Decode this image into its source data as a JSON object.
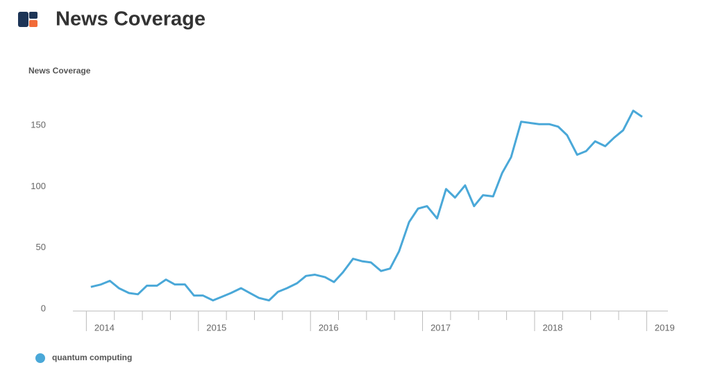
{
  "chart_data": {
    "type": "line",
    "title": "News Coverage",
    "ylabel": "News Coverage",
    "x": [
      2014.04,
      2014.13,
      2014.21,
      2014.29,
      2014.38,
      2014.46,
      2014.54,
      2014.63,
      2014.71,
      2014.79,
      2014.88,
      2014.96,
      2015.04,
      2015.13,
      2015.21,
      2015.29,
      2015.38,
      2015.46,
      2015.54,
      2015.63,
      2015.71,
      2015.79,
      2015.88,
      2015.96,
      2016.04,
      2016.13,
      2016.21,
      2016.29,
      2016.38,
      2016.46,
      2016.54,
      2016.63,
      2016.71,
      2016.79,
      2016.88,
      2016.96,
      2017.04,
      2017.13,
      2017.21,
      2017.29,
      2017.38,
      2017.46,
      2017.54,
      2017.63,
      2017.71,
      2017.79,
      2017.88,
      2017.96,
      2018.04,
      2018.13,
      2018.21,
      2018.29,
      2018.38,
      2018.46,
      2018.54,
      2018.63,
      2018.71,
      2018.79,
      2018.88,
      2018.96
    ],
    "series": [
      {
        "name": "quantum computing",
        "color": "#4aa8d8",
        "values": [
          18,
          20,
          23,
          17,
          13,
          12,
          19,
          19,
          24,
          20,
          20,
          11,
          11,
          7,
          10,
          13,
          17,
          13,
          9,
          7,
          14,
          17,
          21,
          27,
          28,
          26,
          22,
          30,
          41,
          39,
          38,
          31,
          33,
          47,
          71,
          82,
          84,
          74,
          98,
          91,
          101,
          84,
          93,
          92,
          111,
          124,
          153,
          152,
          151,
          151,
          149,
          142,
          126,
          129,
          137,
          133,
          140,
          146,
          162,
          157
        ]
      }
    ],
    "xlim": [
      2013.88,
      2019.19
    ],
    "xticks": [
      2014,
      2015,
      2016,
      2017,
      2018,
      2019
    ],
    "ylim": [
      0,
      180
    ],
    "yticks": [
      0,
      50,
      100,
      150
    ]
  }
}
